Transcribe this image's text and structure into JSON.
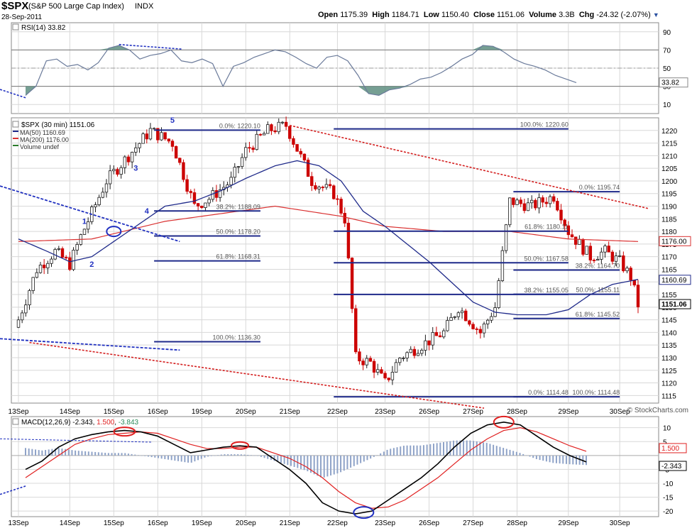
{
  "header": {
    "symbol": "$SPX",
    "name": "(S&P 500 Large Cap Index)",
    "exchange": "INDX",
    "date": "28-Sep-2011",
    "open_label": "Open",
    "open": "1175.39",
    "high_label": "High",
    "high": "1184.71",
    "low_label": "Low",
    "low": "1150.40",
    "close_label": "Close",
    "close": "1151.06",
    "volume_label": "Volume",
    "volume": "3.3B",
    "chg_label": "Chg",
    "chg": "-24.32 (-2.07%)",
    "watermark": "© StockCharts.com"
  },
  "colors": {
    "up": "#1a1a1a",
    "down": "#cc0000",
    "ma50": "#1f2a8a",
    "ma200": "#d93030",
    "fib": "#1f2a8a",
    "rsi_line": "#6a7a9a",
    "fill": "#5e8e80",
    "grid": "#d8d8d8"
  },
  "chart_data": [
    {
      "type": "line",
      "title": "RSI(14) 33.82",
      "indicator": "RSI",
      "ylim": [
        0,
        100
      ],
      "yticks": [
        10,
        30,
        50,
        70,
        90
      ],
      "levels": [
        30,
        50,
        70
      ],
      "last_value": "33.82",
      "values": [
        20,
        30,
        58,
        60,
        52,
        54,
        48,
        56,
        72,
        75,
        70,
        60,
        64,
        66,
        70,
        58,
        56,
        60,
        55,
        30,
        52,
        56,
        62,
        66,
        70,
        68,
        62,
        55,
        50,
        62,
        64,
        58,
        42,
        22,
        20,
        26,
        28,
        32,
        38,
        40,
        45,
        52,
        60,
        65,
        75,
        74,
        68,
        60,
        55,
        52,
        48,
        42,
        38,
        34
      ]
    },
    {
      "type": "candlestick",
      "title": "$SPX (30 min) 1151.06",
      "legend": [
        {
          "label": "MA(50) 1160.69",
          "color": "#1f2a8a"
        },
        {
          "label": "MA(200) 1176.00",
          "color": "#d93030"
        },
        {
          "label": "Volume undef",
          "color": "#2a7a2a"
        }
      ],
      "ylim": [
        1112,
        1225
      ],
      "yticks": [
        1115,
        1120,
        1125,
        1130,
        1135,
        1140,
        1145,
        1150,
        1155,
        1160,
        1165,
        1170,
        1175,
        1180,
        1185,
        1190,
        1195,
        1200,
        1205,
        1210,
        1215,
        1220
      ],
      "x_labels": [
        "13Sep",
        "14Sep",
        "15Sep",
        "16Sep",
        "19Sep",
        "20Sep",
        "21Sep",
        "22Sep",
        "23Sep",
        "26Sep",
        "27Sep",
        "28Sep",
        "29Sep",
        "30Sep"
      ],
      "close_anchors": [
        [
          0,
          1145
        ],
        [
          5,
          1165
        ],
        [
          10,
          1172
        ],
        [
          14,
          1167
        ],
        [
          17,
          1178
        ],
        [
          24,
          1200
        ],
        [
          30,
          1210
        ],
        [
          36,
          1220
        ],
        [
          42,
          1215
        ],
        [
          48,
          1190
        ],
        [
          52,
          1193
        ],
        [
          58,
          1200
        ],
        [
          62,
          1212
        ],
        [
          68,
          1220
        ],
        [
          73,
          1222
        ],
        [
          80,
          1200
        ],
        [
          86,
          1195
        ],
        [
          89,
          1185
        ],
        [
          90,
          1168
        ],
        [
          92,
          1130
        ],
        [
          96,
          1128
        ],
        [
          100,
          1120
        ],
        [
          104,
          1130
        ],
        [
          110,
          1135
        ],
        [
          116,
          1140
        ],
        [
          120,
          1150
        ],
        [
          126,
          1140
        ],
        [
          130,
          1150
        ],
        [
          134,
          1192
        ],
        [
          140,
          1190
        ],
        [
          146,
          1194
        ],
        [
          150,
          1180
        ],
        [
          156,
          1170
        ],
        [
          160,
          1172
        ],
        [
          164,
          1168
        ],
        [
          167,
          1162
        ],
        [
          169,
          1151
        ]
      ],
      "ma50": [
        [
          0,
          1177
        ],
        [
          8,
          1172
        ],
        [
          14,
          1168
        ],
        [
          20,
          1170
        ],
        [
          30,
          1180
        ],
        [
          40,
          1190
        ],
        [
          48,
          1192
        ],
        [
          55,
          1196
        ],
        [
          62,
          1201
        ],
        [
          70,
          1206
        ],
        [
          76,
          1208
        ],
        [
          82,
          1206
        ],
        [
          88,
          1200
        ],
        [
          94,
          1188
        ],
        [
          100,
          1182
        ],
        [
          106,
          1175
        ],
        [
          112,
          1168
        ],
        [
          118,
          1160
        ],
        [
          124,
          1152
        ],
        [
          130,
          1148
        ],
        [
          136,
          1147
        ],
        [
          144,
          1147
        ],
        [
          150,
          1149
        ],
        [
          156,
          1155
        ],
        [
          162,
          1159
        ],
        [
          169,
          1161
        ]
      ],
      "ma200": [
        [
          0,
          1176
        ],
        [
          20,
          1177
        ],
        [
          40,
          1184
        ],
        [
          55,
          1187
        ],
        [
          70,
          1190
        ],
        [
          88,
          1186
        ],
        [
          100,
          1182
        ],
        [
          116,
          1180
        ],
        [
          134,
          1180
        ],
        [
          150,
          1177
        ],
        [
          169,
          1176
        ]
      ],
      "fib_sets": [
        {
          "levels": [
            {
              "pct": "0.0%",
              "value": 1220.1,
              "label": "0.0%: 1220.10"
            },
            {
              "pct": "38.2%",
              "value": 1188.09,
              "label": "38.2%: 1188.09"
            },
            {
              "pct": "50.0%",
              "value": 1178.2,
              "label": "50.0%: 1178.20"
            },
            {
              "pct": "61.8%",
              "value": 1168.31,
              "label": "61.8%: 1168.31"
            },
            {
              "pct": "100.0%",
              "value": 1136.3,
              "label": "100.0%: 1136.30"
            }
          ]
        },
        {
          "levels": [
            {
              "pct": "100.0%",
              "value": 1220.6,
              "label": "100.0%: 1220.60"
            },
            {
              "pct": "61.8%",
              "value": 1180.11,
              "label": "61.8%: 1180.11"
            },
            {
              "pct": "50.0%",
              "value": 1167.58,
              "label": "50.0%: 1167.58"
            },
            {
              "pct": "38.2%",
              "value": 1155.05,
              "label": "38.2%: 1155.05"
            },
            {
              "pct": "0.0%",
              "value": 1114.48,
              "label": "0.0%: 1114.48"
            }
          ]
        },
        {
          "levels": [
            {
              "pct": "0.0%",
              "value": 1195.74,
              "label": "0.0%: 1195.74"
            },
            {
              "pct": "38.2%",
              "value": 1164.7,
              "label": "38.2%: 1164.70"
            },
            {
              "pct": "50.0%",
              "value": 1155.11,
              "label": "50.0%: 1155.11"
            },
            {
              "pct": "61.8%",
              "value": 1145.52,
              "label": "61.8%: 1145.52"
            },
            {
              "pct": "100.0%",
              "value": 1114.48,
              "label": "100.0%: 1114.48"
            }
          ]
        }
      ],
      "wave_labels": [
        "1",
        "2",
        "3",
        "4",
        "5"
      ],
      "price_tags": [
        {
          "value": 1176.0,
          "label": "1176.00"
        },
        {
          "value": 1160.69,
          "label": "1160.69"
        },
        {
          "value": 1151.06,
          "label": "1151.06"
        }
      ]
    },
    {
      "type": "line",
      "title": "MACD(12,26,9) -2.343, 1.500, -3.843",
      "indicator": "MACD",
      "ylim": [
        -22,
        14
      ],
      "yticks": [
        -20,
        -15,
        -10,
        -5,
        5,
        10
      ],
      "series": [
        {
          "name": "MACD(12,26,9)",
          "last": "-2.343",
          "values": [
            -5,
            -2,
            3,
            6,
            7.5,
            8.5,
            9,
            8.5,
            7,
            4,
            1,
            2,
            3,
            3.5,
            3,
            -1,
            -5,
            -10,
            -17,
            -20,
            -21,
            -20,
            -16,
            -12,
            -8,
            -3,
            3,
            8,
            11,
            12,
            11,
            7,
            3,
            0,
            -2.3
          ]
        },
        {
          "name": "signal",
          "last": "1.500",
          "values": [
            -8,
            -4,
            0,
            4,
            6,
            7.5,
            8,
            8.5,
            8,
            6,
            4,
            2.5,
            2.5,
            3,
            3,
            1,
            -1,
            -4,
            -8,
            -13,
            -17,
            -19,
            -18.5,
            -16,
            -12,
            -8,
            -3,
            2,
            6,
            9,
            10,
            8.5,
            6,
            3.5,
            1.5
          ]
        },
        {
          "name": "histogram",
          "last": "-3.843"
        }
      ]
    }
  ]
}
